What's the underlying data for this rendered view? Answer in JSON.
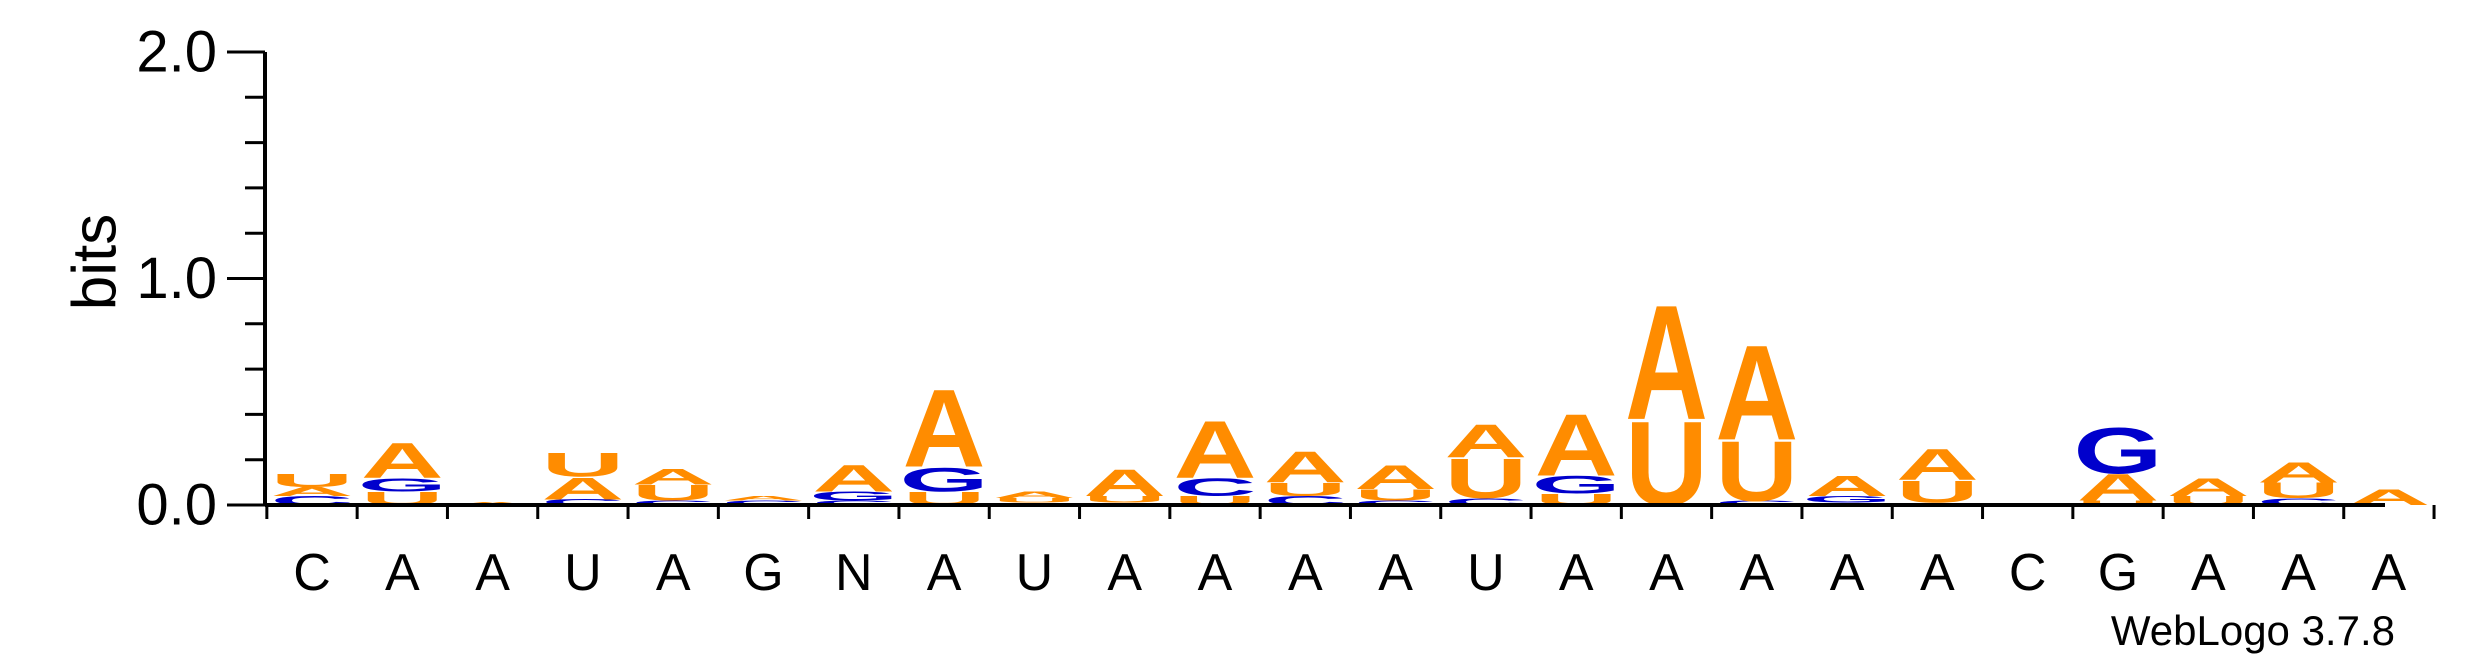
{
  "chart_data": {
    "type": "sequence-logo",
    "ylabel": "bits",
    "ylim": [
      0,
      2.0
    ],
    "yticks": [
      "0.0",
      "1.0",
      "2.0"
    ],
    "yminor_step": 0.2,
    "x_labels": [
      "C",
      "A",
      "A",
      "U",
      "A",
      "G",
      "N",
      "A",
      "U",
      "A",
      "A",
      "A",
      "A",
      "U",
      "A",
      "A",
      "A",
      "A",
      "A",
      "C",
      "G",
      "A",
      "A",
      "A"
    ],
    "colors": {
      "A": "#ff8c00",
      "U": "#ff8c00",
      "C": "#0000cc",
      "G": "#0000cc",
      "N": "#000000"
    },
    "positions": [
      [
        [
          "C",
          0.04
        ],
        [
          "A",
          0.04
        ],
        [
          "U",
          0.06
        ]
      ],
      [
        [
          "U",
          0.06
        ],
        [
          "G",
          0.06
        ],
        [
          "A",
          0.16
        ]
      ],
      [
        [
          "A",
          0.015
        ]
      ],
      [
        [
          "C",
          0.025
        ],
        [
          "A",
          0.1
        ],
        [
          "U",
          0.11
        ]
      ],
      [
        [
          "C",
          0.02
        ],
        [
          "U",
          0.07
        ],
        [
          "A",
          0.07
        ]
      ],
      [
        [
          "C",
          0.02
        ],
        [
          "A",
          0.02
        ]
      ],
      [
        [
          "C",
          0.02
        ],
        [
          "G",
          0.04
        ],
        [
          "A",
          0.12
        ]
      ],
      [
        [
          "U",
          0.06
        ],
        [
          "G",
          0.11
        ],
        [
          "A",
          0.35
        ]
      ],
      [
        [
          "C",
          0.01
        ],
        [
          "U",
          0.02
        ],
        [
          "A",
          0.03
        ]
      ],
      [
        [
          "C",
          0.01
        ],
        [
          "U",
          0.03
        ],
        [
          "A",
          0.12
        ]
      ],
      [
        [
          "U",
          0.04
        ],
        [
          "C",
          0.08
        ],
        [
          "A",
          0.26
        ]
      ],
      [
        [
          "C",
          0.04
        ],
        [
          "U",
          0.06
        ],
        [
          "A",
          0.14
        ]
      ],
      [
        [
          "C",
          0.02
        ],
        [
          "U",
          0.05
        ],
        [
          "A",
          0.11
        ]
      ],
      [
        [
          "C",
          0.03
        ],
        [
          "U",
          0.18
        ],
        [
          "A",
          0.15
        ]
      ],
      [
        [
          "U",
          0.05
        ],
        [
          "G",
          0.08
        ],
        [
          "A",
          0.28
        ]
      ],
      [
        [
          "U",
          0.38
        ],
        [
          "A",
          0.52
        ]
      ],
      [
        [
          "C",
          0.02
        ],
        [
          "U",
          0.27
        ],
        [
          "A",
          0.43
        ]
      ],
      [
        [
          "C",
          0.01
        ],
        [
          "G",
          0.03
        ],
        [
          "A",
          0.09
        ]
      ],
      [
        [
          "C",
          0.01
        ],
        [
          "U",
          0.1
        ],
        [
          "A",
          0.14
        ]
      ],
      [
        [
          "A",
          0.01
        ]
      ],
      [
        [
          "U",
          0.02
        ],
        [
          "A",
          0.12
        ],
        [
          "G",
          0.21
        ]
      ],
      [
        [
          "U",
          0.04
        ],
        [
          "A",
          0.08
        ]
      ],
      [
        [
          "C",
          0.03
        ],
        [
          "U",
          0.07
        ],
        [
          "A",
          0.09
        ]
      ],
      [
        [
          "A",
          0.07
        ]
      ]
    ]
  },
  "footer": {
    "credit": "WebLogo 3.7.8"
  }
}
